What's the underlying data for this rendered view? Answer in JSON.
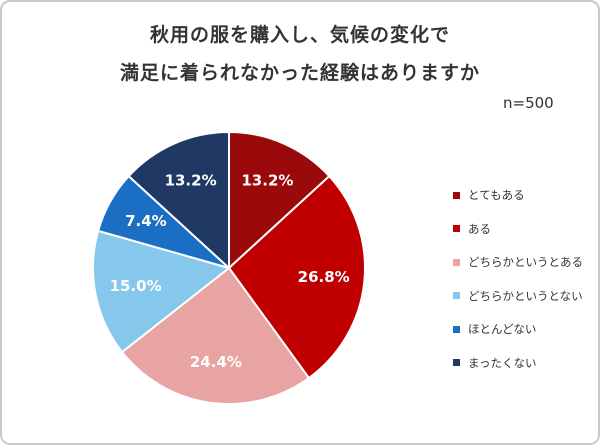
{
  "chart_data": {
    "type": "pie",
    "title": [
      "秋用の服を購入し、気候の変化で",
      "満足に着られなかった経験はありますか"
    ],
    "annotation": "n=500",
    "categories": [
      "とてもある",
      "ある",
      "どちらかというとある",
      "どちらかというとない",
      "ほとんどない",
      "まったくない"
    ],
    "values": [
      13.2,
      26.8,
      24.4,
      15.0,
      7.4,
      13.2
    ],
    "value_labels": [
      "13.2%",
      "26.8%",
      "24.4%",
      "15.0%",
      "7.4%",
      "13.2%"
    ],
    "colors": [
      "#9b0a0a",
      "#c00000",
      "#e8a3a3",
      "#85c8ec",
      "#1a6fc4",
      "#1f3864"
    ],
    "legend_placement": "right"
  }
}
